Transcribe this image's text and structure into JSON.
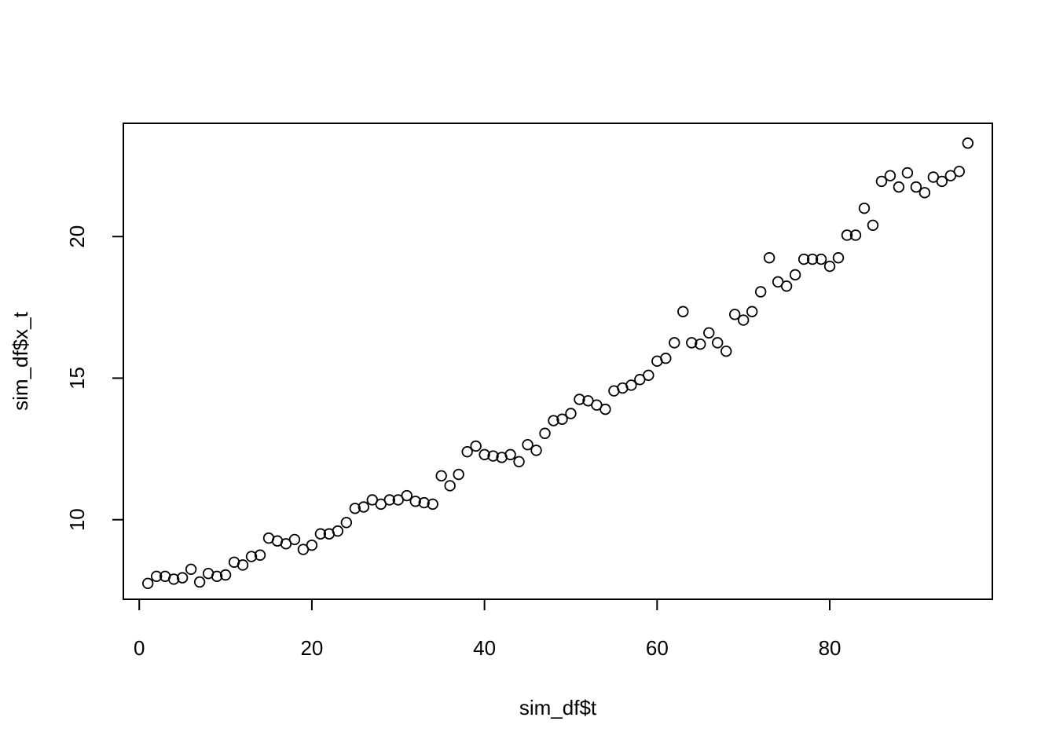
{
  "chart_data": {
    "type": "scatter",
    "xlabel": "sim_df$t",
    "ylabel": "sim_df$x_t",
    "xlim": [
      -1.84,
      98.84
    ],
    "ylim": [
      7.19,
      24.0
    ],
    "x_ticks": [
      0,
      20,
      40,
      60,
      80
    ],
    "y_ticks": [
      10,
      15,
      20
    ],
    "marker": "open-circle",
    "grid": false,
    "legend": "none",
    "x": [
      1,
      2,
      3,
      4,
      5,
      6,
      7,
      8,
      9,
      10,
      11,
      12,
      13,
      14,
      15,
      16,
      17,
      18,
      19,
      20,
      21,
      22,
      23,
      24,
      25,
      26,
      27,
      28,
      29,
      30,
      31,
      32,
      33,
      34,
      35,
      36,
      37,
      38,
      39,
      40,
      41,
      42,
      43,
      44,
      45,
      46,
      47,
      48,
      49,
      50,
      51,
      52,
      53,
      54,
      55,
      56,
      57,
      58,
      59,
      60,
      61,
      62,
      63,
      64,
      65,
      66,
      67,
      68,
      69,
      70,
      71,
      72,
      73,
      74,
      75,
      76,
      77,
      78,
      79,
      80,
      81,
      82,
      83,
      84,
      85,
      86,
      87,
      88,
      89,
      90,
      91,
      92,
      93,
      94,
      95,
      96
    ],
    "y": [
      7.75,
      8.0,
      8.0,
      7.9,
      7.95,
      8.25,
      7.8,
      8.1,
      8.0,
      8.05,
      8.5,
      8.4,
      8.7,
      8.75,
      9.35,
      9.25,
      9.15,
      9.3,
      8.95,
      9.1,
      9.5,
      9.5,
      9.6,
      9.9,
      10.4,
      10.45,
      10.7,
      10.55,
      10.7,
      10.7,
      10.85,
      10.65,
      10.6,
      10.55,
      11.55,
      11.2,
      11.6,
      12.4,
      12.6,
      12.3,
      12.25,
      12.2,
      12.3,
      12.05,
      12.65,
      12.45,
      13.05,
      13.5,
      13.55,
      13.75,
      14.25,
      14.2,
      14.05,
      13.9,
      14.55,
      14.65,
      14.75,
      14.95,
      15.1,
      15.6,
      15.7,
      16.25,
      17.35,
      16.25,
      16.2,
      16.6,
      16.25,
      15.95,
      17.25,
      17.05,
      17.35,
      18.05,
      19.25,
      18.4,
      18.25,
      18.65,
      19.2,
      19.2,
      19.2,
      18.95,
      19.25,
      20.05,
      20.05,
      21.0,
      20.4,
      21.95,
      22.15,
      21.75,
      22.25,
      21.75,
      21.55,
      22.1,
      21.95,
      22.15,
      22.3,
      23.3
    ]
  }
}
